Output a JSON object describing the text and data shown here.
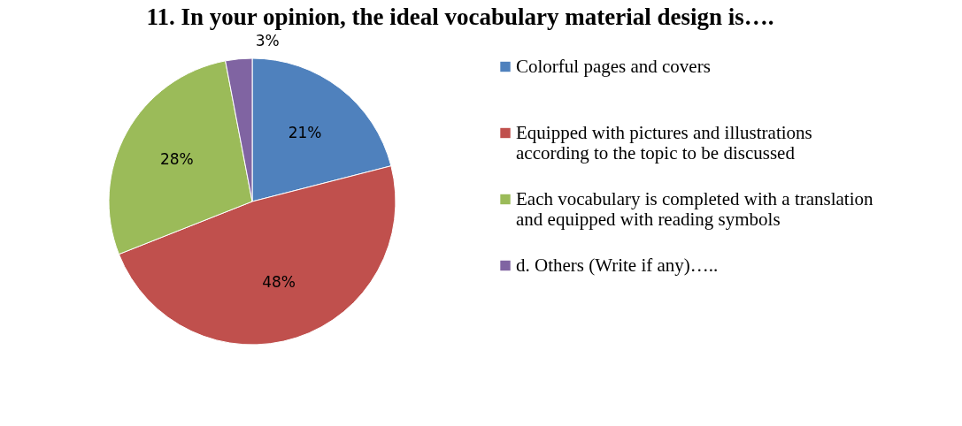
{
  "chart_data": {
    "type": "pie",
    "title": "11. In your opinion, the ideal vocabulary material design is….",
    "categories": [
      "Colorful pages and covers",
      "Equipped with pictures and illustrations according to the topic to be discussed",
      "Each vocabulary is completed with a translation and equipped with reading symbols",
      "d. Others (Write if any)….."
    ],
    "values": [
      21,
      48,
      28,
      3
    ],
    "colors": [
      "#4f81bd",
      "#c0504d",
      "#9bbb59",
      "#8064a2"
    ],
    "value_labels": [
      "21%",
      "48%",
      "28%",
      "3%"
    ],
    "legend": "right"
  }
}
